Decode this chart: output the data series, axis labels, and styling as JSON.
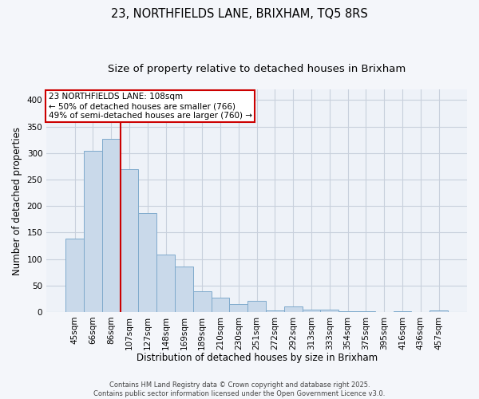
{
  "title1": "23, NORTHFIELDS LANE, BRIXHAM, TQ5 8RS",
  "title2": "Size of property relative to detached houses in Brixham",
  "xlabel": "Distribution of detached houses by size in Brixham",
  "ylabel": "Number of detached properties",
  "categories": [
    "45sqm",
    "66sqm",
    "86sqm",
    "107sqm",
    "127sqm",
    "148sqm",
    "169sqm",
    "189sqm",
    "210sqm",
    "230sqm",
    "251sqm",
    "272sqm",
    "292sqm",
    "313sqm",
    "333sqm",
    "354sqm",
    "375sqm",
    "395sqm",
    "416sqm",
    "436sqm",
    "457sqm"
  ],
  "values": [
    138,
    305,
    327,
    270,
    186,
    108,
    86,
    39,
    27,
    15,
    21,
    3,
    10,
    4,
    5,
    1,
    1,
    0,
    1,
    0,
    3
  ],
  "bar_color": "#c9d9ea",
  "bar_edge_color": "#7faacc",
  "vline_pos": 2.5,
  "vline_color": "#cc0000",
  "annotation_text": "23 NORTHFIELDS LANE: 108sqm\n← 50% of detached houses are smaller (766)\n49% of semi-detached houses are larger (760) →",
  "annotation_box_facecolor": "#ffffff",
  "annotation_box_edgecolor": "#cc0000",
  "ylim_max": 420,
  "yticks": [
    0,
    50,
    100,
    150,
    200,
    250,
    300,
    350,
    400
  ],
  "grid_color": "#c8d0dc",
  "plot_bg_color": "#eef2f8",
  "fig_bg_color": "#f4f6fa",
  "footer_text": "Contains HM Land Registry data © Crown copyright and database right 2025.\nContains public sector information licensed under the Open Government Licence v3.0.",
  "title1_fontsize": 10.5,
  "title2_fontsize": 9.5,
  "xlabel_fontsize": 8.5,
  "ylabel_fontsize": 8.5,
  "tick_fontsize": 7.5,
  "annotation_fontsize": 7.5,
  "footer_fontsize": 6.0
}
